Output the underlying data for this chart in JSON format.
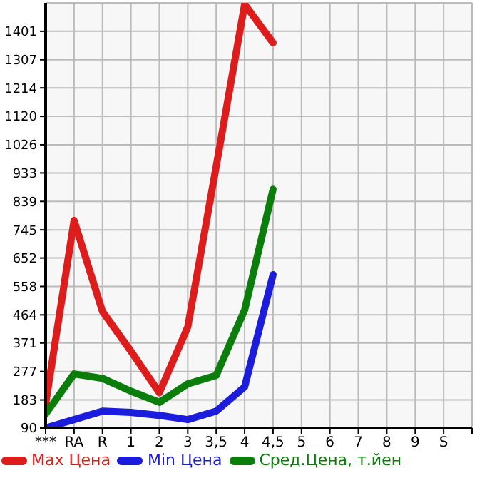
{
  "chart_data": {
    "type": "line",
    "categories": [
      "***",
      "RA",
      "R",
      "1",
      "2",
      "3",
      "3,5",
      "4",
      "4,5",
      "5",
      "6",
      "7",
      "8",
      "9",
      "S",
      null
    ],
    "series": [
      {
        "name": "Max Цена",
        "color": "#dd1c1c",
        "values": [
          170,
          776,
          475,
          344,
          207,
          424,
          955,
          1490,
          1363,
          null,
          null,
          null,
          null,
          null,
          null,
          null
        ]
      },
      {
        "name": "Min Цена",
        "color": "#1c1cdd",
        "values": [
          90,
          118,
          146,
          142,
          132,
          118,
          146,
          226,
          597,
          null,
          null,
          null,
          null,
          null,
          null,
          null
        ]
      },
      {
        "name": "Сред.Цена, т.йен",
        "color": "#0a7d0a",
        "values": [
          137,
          269,
          254,
          212,
          175,
          236,
          264,
          480,
          879,
          null,
          null,
          null,
          null,
          null,
          null,
          null
        ]
      }
    ],
    "ylim": [
      90,
      1495
    ],
    "yticks": [
      90,
      183,
      277,
      371,
      464,
      558,
      652,
      745,
      839,
      933,
      1026,
      1120,
      1214,
      1307,
      1401
    ],
    "grid": true,
    "legend": "bottom",
    "marker": "none",
    "line_style": "solid"
  }
}
